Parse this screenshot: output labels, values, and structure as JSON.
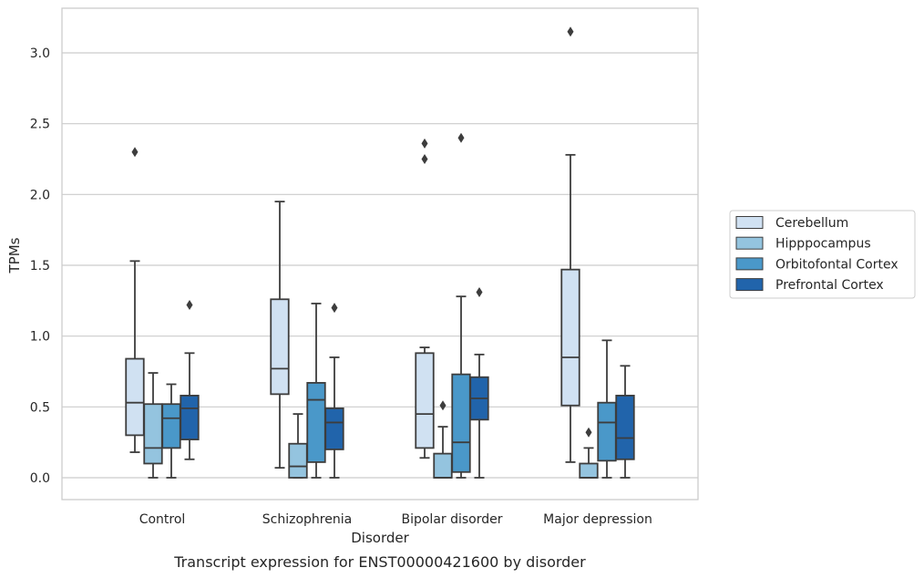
{
  "caption": "Transcript expression for ENST00000421600 by disorder",
  "chart_data": {
    "type": "box",
    "xlabel": "Disorder",
    "ylabel": "TPMs",
    "ylim": [
      -0.15,
      3.3
    ],
    "yticks": [
      "0.0",
      "0.5",
      "1.0",
      "1.5",
      "2.0",
      "2.5",
      "3.0"
    ],
    "ytick_values": [
      0.0,
      0.5,
      1.0,
      1.5,
      2.0,
      2.5,
      3.0
    ],
    "categories": [
      "Control",
      "Schizophrenia",
      "Bipolar disorder",
      "Major depression"
    ],
    "grid": "horizontal",
    "legend_position": "right",
    "series": [
      {
        "name": "Cerebellum",
        "color": "#d0e1f2",
        "boxes": [
          {
            "whislo": 0.18,
            "q1": 0.3,
            "med": 0.53,
            "q3": 0.84,
            "whishi": 1.53,
            "fliers": [
              2.3
            ]
          },
          {
            "whislo": 0.07,
            "q1": 0.59,
            "med": 0.77,
            "q3": 1.26,
            "whishi": 1.95,
            "fliers": []
          },
          {
            "whislo": 0.14,
            "q1": 0.21,
            "med": 0.45,
            "q3": 0.88,
            "whishi": 0.92,
            "fliers": [
              2.25,
              2.36
            ]
          },
          {
            "whislo": 0.11,
            "q1": 0.51,
            "med": 0.85,
            "q3": 1.47,
            "whishi": 2.28,
            "fliers": [
              3.15
            ]
          }
        ]
      },
      {
        "name": "Hipppocampus",
        "color": "#94c4df",
        "boxes": [
          {
            "whislo": 0.0,
            "q1": 0.1,
            "med": 0.21,
            "q3": 0.52,
            "whishi": 0.74,
            "fliers": []
          },
          {
            "whislo": 0.0,
            "q1": 0.0,
            "med": 0.08,
            "q3": 0.24,
            "whishi": 0.45,
            "fliers": []
          },
          {
            "whislo": 0.0,
            "q1": 0.0,
            "med": 0.0,
            "q3": 0.17,
            "whishi": 0.36,
            "fliers": [
              0.51
            ]
          },
          {
            "whislo": 0.0,
            "q1": 0.0,
            "med": 0.0,
            "q3": 0.1,
            "whishi": 0.21,
            "fliers": [
              0.32
            ]
          }
        ]
      },
      {
        "name": "Orbitofontal Cortex",
        "color": "#4a98c9",
        "boxes": [
          {
            "whislo": 0.0,
            "q1": 0.21,
            "med": 0.42,
            "q3": 0.52,
            "whishi": 0.66,
            "fliers": []
          },
          {
            "whislo": 0.0,
            "q1": 0.11,
            "med": 0.55,
            "q3": 0.67,
            "whishi": 1.23,
            "fliers": []
          },
          {
            "whislo": 0.0,
            "q1": 0.04,
            "med": 0.25,
            "q3": 0.73,
            "whishi": 1.28,
            "fliers": [
              2.4
            ]
          },
          {
            "whislo": 0.0,
            "q1": 0.12,
            "med": 0.39,
            "q3": 0.53,
            "whishi": 0.97,
            "fliers": []
          }
        ]
      },
      {
        "name": "Prefrontal Cortex",
        "color": "#2164ab",
        "boxes": [
          {
            "whislo": 0.13,
            "q1": 0.27,
            "med": 0.49,
            "q3": 0.58,
            "whishi": 0.88,
            "fliers": [
              1.22
            ]
          },
          {
            "whislo": 0.0,
            "q1": 0.2,
            "med": 0.39,
            "q3": 0.49,
            "whishi": 0.85,
            "fliers": [
              1.2
            ]
          },
          {
            "whislo": 0.0,
            "q1": 0.41,
            "med": 0.56,
            "q3": 0.71,
            "whishi": 0.87,
            "fliers": [
              1.31
            ]
          },
          {
            "whislo": 0.0,
            "q1": 0.13,
            "med": 0.28,
            "q3": 0.58,
            "whishi": 0.79,
            "fliers": []
          }
        ]
      }
    ]
  }
}
